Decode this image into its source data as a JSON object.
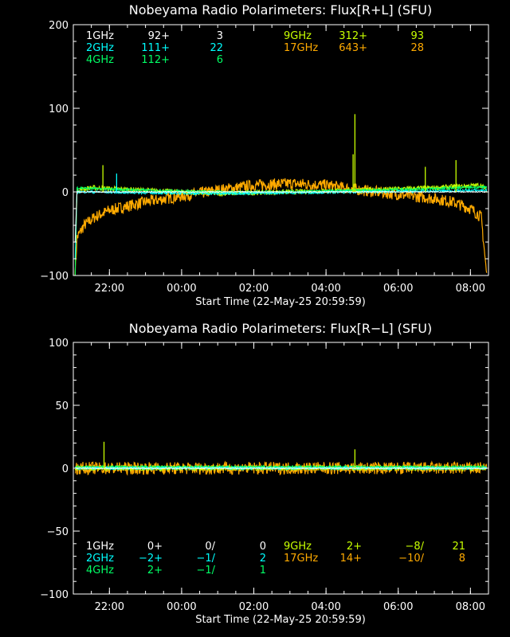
{
  "colors": {
    "background": "#000000",
    "axes": "#ffffff",
    "1GHz": "#ffffff",
    "2GHz": "#00ffff",
    "4GHz": "#00ff66",
    "9GHz": "#c8ff00",
    "17GHz": "#ffaa00"
  },
  "chart_data": [
    {
      "type": "line",
      "title": "Nobeyama Radio Polarimeters: Flux[R+L] (SFU)",
      "xlabel": "Start Time (22-May-25 20:59:59)",
      "x_ticks": [
        "22:00",
        "00:00",
        "02:00",
        "04:00",
        "06:00",
        "08:00"
      ],
      "x_tick_hours": [
        1.0,
        3.0,
        5.0,
        7.0,
        9.0,
        11.0
      ],
      "xlim_hours": [
        0,
        11.5
      ],
      "ylim": [
        -100,
        200
      ],
      "y_ticks": [
        "200",
        "100",
        "0",
        "−100"
      ],
      "y_tick_values": [
        200,
        100,
        0,
        -100
      ],
      "legend": {
        "placement": "top",
        "rows": [
          {
            "name": "1GHz",
            "a": "92+",
            "b": "3"
          },
          {
            "name": "2GHz",
            "a": "111+",
            "b": "22"
          },
          {
            "name": "4GHz",
            "a": "112+",
            "b": "6"
          },
          {
            "name": "9GHz",
            "a": "312+",
            "b": "93"
          },
          {
            "name": "17GHz",
            "a": "643+",
            "b": "28"
          }
        ]
      },
      "series": [
        {
          "name": "17GHz",
          "x": [
            0.05,
            0.1,
            0.3,
            0.6,
            1.0,
            2.0,
            3.0,
            4.0,
            5.0,
            6.0,
            7.0,
            8.0,
            9.0,
            10.0,
            10.5,
            11.0,
            11.3,
            11.45
          ],
          "y": [
            -100,
            -55,
            -40,
            -30,
            -22,
            -12,
            -5,
            2,
            8,
            10,
            8,
            2,
            -3,
            -8,
            -12,
            -20,
            -30,
            -100
          ],
          "spread": 7
        },
        {
          "name": "9GHz",
          "x": [
            0.05,
            0.1,
            0.5,
            2.0,
            4.0,
            6.0,
            8.0,
            10.0,
            11.3,
            11.45
          ],
          "y": [
            -100,
            2,
            5,
            2,
            -2,
            0,
            2,
            5,
            8,
            2
          ],
          "spread": 3
        },
        {
          "name": "4GHz",
          "x": [
            0.05,
            0.1,
            0.5,
            2,
            4,
            6,
            8,
            10,
            11.45
          ],
          "y": [
            -100,
            5,
            4,
            2,
            0,
            0,
            2,
            4,
            6
          ],
          "spread": 1.5
        },
        {
          "name": "2GHz",
          "x": [
            0.05,
            0.1,
            0.5,
            2,
            4,
            6,
            8,
            10,
            11.45
          ],
          "y": [
            -80,
            0,
            0,
            -1,
            -2,
            -1,
            0,
            1,
            2
          ],
          "spread": 1.5
        },
        {
          "name": "1GHz",
          "x": [
            0.05,
            0.1,
            11.45
          ],
          "y": [
            -60,
            0,
            0
          ],
          "spread": 0.5
        }
      ],
      "spikes": [
        {
          "series": "9GHz",
          "x": 0.82,
          "y": 32
        },
        {
          "series": "2GHz",
          "x": 1.2,
          "y": 22
        },
        {
          "series": "9GHz",
          "x": 7.8,
          "y": 93
        },
        {
          "series": "9GHz",
          "x": 7.75,
          "y": 45
        },
        {
          "series": "9GHz",
          "x": 9.75,
          "y": 30
        },
        {
          "series": "9GHz",
          "x": 10.6,
          "y": 38
        }
      ]
    },
    {
      "type": "line",
      "title": "Nobeyama Radio Polarimeters: Flux[R−L] (SFU)",
      "xlabel": "Start Time (22-May-25 20:59:59)",
      "x_ticks": [
        "22:00",
        "00:00",
        "02:00",
        "04:00",
        "06:00",
        "08:00"
      ],
      "x_tick_hours": [
        1.0,
        3.0,
        5.0,
        7.0,
        9.0,
        11.0
      ],
      "xlim_hours": [
        0,
        11.5
      ],
      "ylim": [
        -100,
        100
      ],
      "y_ticks": [
        "100",
        "50",
        "0",
        "−50",
        "−100"
      ],
      "y_tick_values": [
        100,
        50,
        0,
        -50,
        -100
      ],
      "legend": {
        "placement": "bottom",
        "rows": [
          {
            "name": "1GHz",
            "a": "0+",
            "b": "0/",
            "c": "0"
          },
          {
            "name": "2GHz",
            "a": "−2+",
            "b": "−1/",
            "c": "2"
          },
          {
            "name": "4GHz",
            "a": "2+",
            "b": "−1/",
            "c": "1"
          },
          {
            "name": "9GHz",
            "a": "2+",
            "b": "−8/",
            "c": "21"
          },
          {
            "name": "17GHz",
            "a": "14+",
            "b": "−10/",
            "c": "8"
          }
        ]
      },
      "series": [
        {
          "name": "17GHz",
          "x": [
            0.05,
            11.45
          ],
          "y": [
            0,
            0
          ],
          "spread": 5
        },
        {
          "name": "9GHz",
          "x": [
            0.05,
            11.45
          ],
          "y": [
            0,
            0
          ],
          "spread": 2
        },
        {
          "name": "4GHz",
          "x": [
            0.05,
            11.45
          ],
          "y": [
            1,
            1
          ],
          "spread": 1
        },
        {
          "name": "2GHz",
          "x": [
            0.05,
            11.45
          ],
          "y": [
            0,
            0
          ],
          "spread": 1
        },
        {
          "name": "1GHz",
          "x": [
            0.05,
            11.45
          ],
          "y": [
            0,
            0
          ],
          "spread": 0.3
        }
      ],
      "spikes": [
        {
          "series": "9GHz",
          "x": 0.85,
          "y": 21
        },
        {
          "series": "9GHz",
          "x": 7.8,
          "y": 15
        }
      ]
    }
  ]
}
